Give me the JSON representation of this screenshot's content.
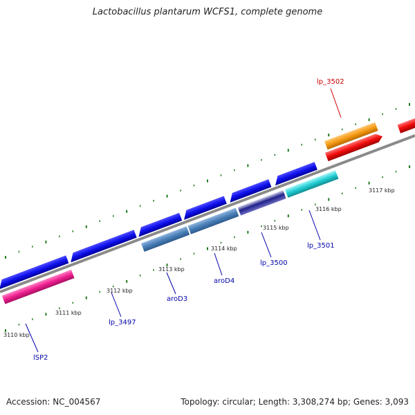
{
  "title": "Lactobacillus plantarum WCFS1, complete genome",
  "accession": "Accession: NC_004567",
  "summary": "Topology: circular; Length: 3,308,274 bp; Genes: 3,093",
  "colors": {
    "backbone": "#8a8a8a",
    "tick": "#1f7a1f",
    "label_blue": "#0000aa",
    "label_red": "#cc0000"
  },
  "ticks": [
    {
      "label": "3110 kbp"
    },
    {
      "label": "3111 kbp"
    },
    {
      "label": "3112 kbp"
    },
    {
      "label": "3113 kbp"
    },
    {
      "label": "3114 kbp"
    },
    {
      "label": "3115 kbp"
    },
    {
      "label": "3116 kbp"
    },
    {
      "label": "3117 kbp"
    }
  ],
  "gene_labels": [
    {
      "name": "lSP2",
      "color": "#0000aa"
    },
    {
      "name": "lp_3497",
      "color": "#0000aa"
    },
    {
      "name": "aroD3",
      "color": "#0000aa"
    },
    {
      "name": "aroD4",
      "color": "#0000aa"
    },
    {
      "name": "lp_3500",
      "color": "#0000aa"
    },
    {
      "name": "lp_3501",
      "color": "#0000aa"
    },
    {
      "name": "lp_3502",
      "color": "#cc0000"
    }
  ]
}
